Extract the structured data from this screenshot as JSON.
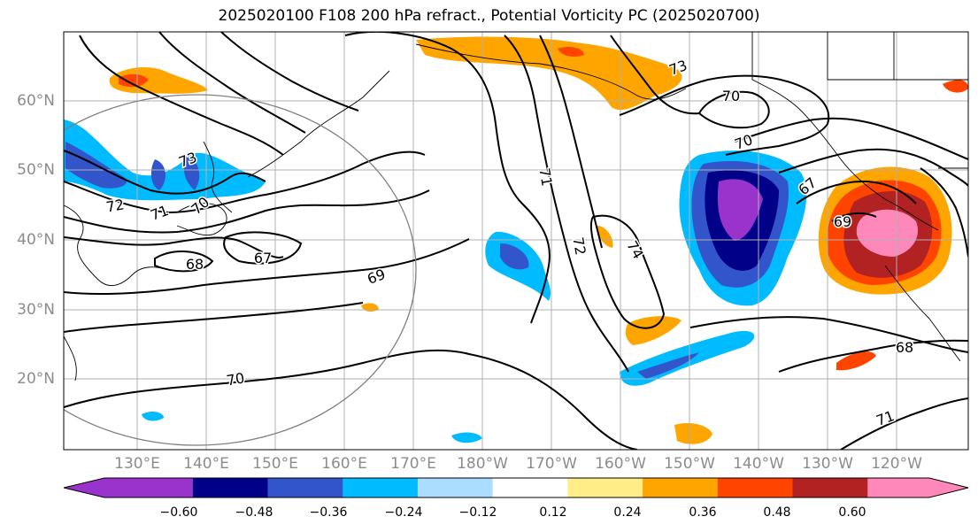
{
  "title": "2025020100 F108 200 hPa refract., Potential Vorticity PC (2025020700)",
  "lat_labels": [
    {
      "text": "60°N",
      "lat": 60
    },
    {
      "text": "50°N",
      "lat": 50
    },
    {
      "text": "40°N",
      "lat": 40
    },
    {
      "text": "30°N",
      "lat": 30
    },
    {
      "text": "20°N",
      "lat": 20
    }
  ],
  "lon_labels": [
    {
      "text": "130°E",
      "lon": 130
    },
    {
      "text": "140°E",
      "lon": 140
    },
    {
      "text": "150°E",
      "lon": 150
    },
    {
      "text": "160°E",
      "lon": 160
    },
    {
      "text": "170°E",
      "lon": 170
    },
    {
      "text": "180°W",
      "lon": 180
    },
    {
      "text": "170°W",
      "lon": 190
    },
    {
      "text": "160°W",
      "lon": 200
    },
    {
      "text": "150°W",
      "lon": 210
    },
    {
      "text": "140°W",
      "lon": 220
    },
    {
      "text": "130°W",
      "lon": 230
    },
    {
      "text": "120°W",
      "lon": 240
    }
  ],
  "contour_labels": [
    "73",
    "72",
    "71",
    "70",
    "68",
    "67",
    "69",
    "70",
    "71",
    "72",
    "74",
    "73",
    "70",
    "68",
    "67",
    "69",
    "70",
    "71"
  ],
  "colorbar": {
    "colors": [
      "#9933cc",
      "#000088",
      "#3355cc",
      "#00bbff",
      "#aaddff",
      "#ffffff",
      "#ffee88",
      "#ffa500",
      "#ff4400",
      "#b22222",
      "#ff88bb"
    ],
    "ticks": [
      "−0.60",
      "−0.48",
      "−0.36",
      "−0.24",
      "−0.12",
      "0.12",
      "0.24",
      "0.36",
      "0.48",
      "0.60"
    ]
  },
  "colors": {
    "contour": "#000000",
    "grid": "#b0b0b0",
    "coast": "#000000",
    "circle": "#808080"
  }
}
